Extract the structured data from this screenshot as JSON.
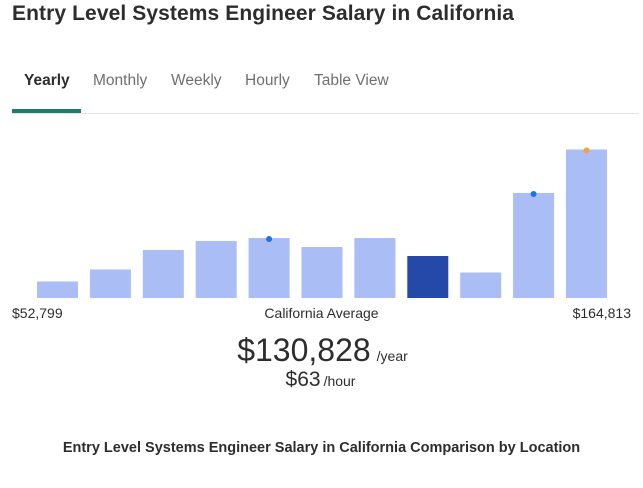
{
  "page": {
    "title": "Entry Level Systems Engineer Salary in California"
  },
  "tabs": [
    {
      "label": "Yearly",
      "active": true
    },
    {
      "label": "Monthly",
      "active": false
    },
    {
      "label": "Weekly",
      "active": false
    },
    {
      "label": "Hourly",
      "active": false
    },
    {
      "label": "Table View",
      "active": false
    }
  ],
  "colors": {
    "bar_default": "#aabdf4",
    "bar_highlight": "#2449a8",
    "marker_blue": "#1a73e8",
    "marker_orange": "#f5a142",
    "tab_underline": "#1b7e6c"
  },
  "chart_data": {
    "type": "bar",
    "ylim": [
      0,
      100
    ],
    "values": [
      11,
      19,
      32,
      38,
      40,
      34,
      40,
      28,
      17,
      70,
      99
    ],
    "highlight_index": 7,
    "markers": [
      {
        "bar_index": 4,
        "color": "blue"
      },
      {
        "bar_index": 9,
        "color": "blue"
      },
      {
        "bar_index": 10,
        "color": "orange"
      }
    ],
    "range_min_label": "$52,799",
    "range_max_label": "$164,813",
    "center_label": "California Average"
  },
  "summary": {
    "annual_value": "$130,828",
    "annual_unit": "/year",
    "hourly_value": "$63",
    "hourly_unit": "/hour"
  },
  "section": {
    "heading": "Entry Level Systems Engineer Salary in California Comparison by Location"
  }
}
